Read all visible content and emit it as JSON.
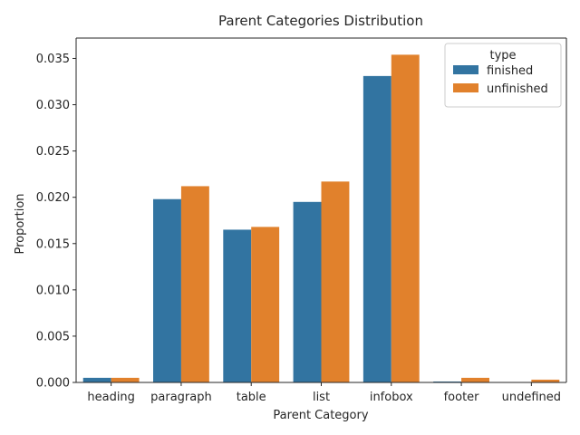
{
  "chart_data": {
    "type": "bar",
    "title": "Parent Categories Distribution",
    "xlabel": "Parent Category",
    "ylabel": "Proportion",
    "categories": [
      "heading",
      "paragraph",
      "table",
      "list",
      "infobox",
      "footer",
      "undefined"
    ],
    "series": [
      {
        "name": "finished",
        "color": "#3274a1",
        "values": [
          0.0005,
          0.0198,
          0.0165,
          0.0195,
          0.0331,
          0.0001,
          0.0
        ]
      },
      {
        "name": "unfinished",
        "color": "#e1812c",
        "values": [
          0.0005,
          0.0212,
          0.0168,
          0.0217,
          0.0354,
          0.0005,
          0.0003
        ]
      }
    ],
    "ylim": [
      0,
      0.0372
    ],
    "yticks": [
      "0.000",
      "0.005",
      "0.010",
      "0.015",
      "0.020",
      "0.025",
      "0.030",
      "0.035"
    ],
    "legend": {
      "title": "type",
      "placement": "top-right"
    },
    "grid": false
  }
}
